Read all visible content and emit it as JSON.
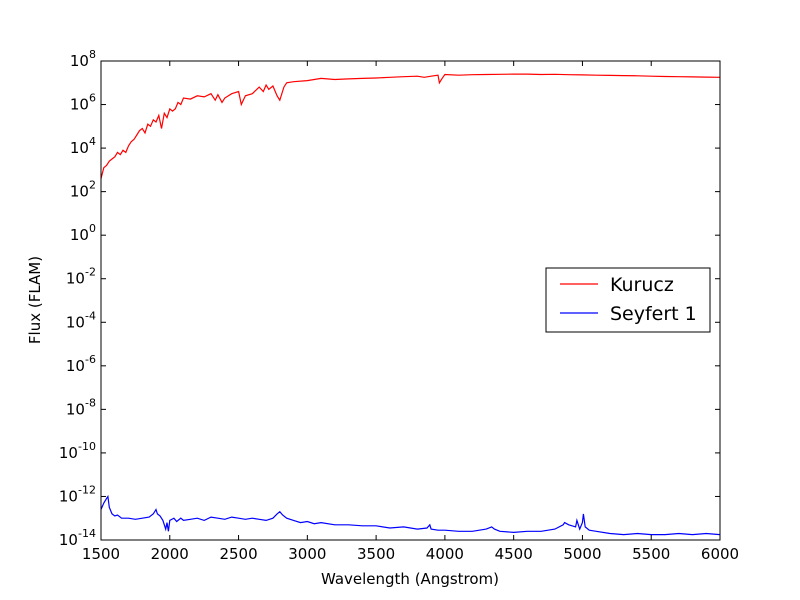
{
  "chart_data": {
    "type": "line",
    "title": "",
    "xlabel": "Wavelength (Angstrom)",
    "ylabel": "Flux (FLAM)",
    "xlim": [
      1500,
      6000
    ],
    "ylim_log10": [
      -14,
      8
    ],
    "y_scale": "log",
    "grid": false,
    "legend_placement": "center-right",
    "x_ticks": [
      1500,
      2000,
      2500,
      3000,
      3500,
      4000,
      4500,
      5000,
      5500,
      6000
    ],
    "x_tick_labels": [
      "1500",
      "2000",
      "2500",
      "3000",
      "3500",
      "4000",
      "4500",
      "5000",
      "5500",
      "6000"
    ],
    "y_tick_exponents": [
      8,
      6,
      4,
      2,
      0,
      -2,
      -4,
      -6,
      -8,
      -10,
      -12,
      -14
    ],
    "y_tick_labels": [
      "8",
      "6",
      "4",
      "2",
      "0",
      "-2",
      "-4",
      "-6",
      "-8",
      "-10",
      "-12",
      "-14"
    ],
    "y_tick_base": "10",
    "series": [
      {
        "name": "Kurucz",
        "color": "#ff0000",
        "x": [
          1500,
          1520,
          1540,
          1560,
          1580,
          1600,
          1620,
          1640,
          1660,
          1680,
          1700,
          1720,
          1740,
          1760,
          1780,
          1800,
          1820,
          1840,
          1860,
          1880,
          1900,
          1920,
          1940,
          1960,
          1980,
          2000,
          2020,
          2040,
          2060,
          2080,
          2100,
          2150,
          2200,
          2250,
          2300,
          2330,
          2350,
          2380,
          2400,
          2450,
          2500,
          2520,
          2550,
          2600,
          2650,
          2680,
          2700,
          2720,
          2750,
          2780,
          2800,
          2830,
          2850,
          2900,
          3000,
          3100,
          3200,
          3300,
          3400,
          3500,
          3600,
          3700,
          3800,
          3850,
          3900,
          3950,
          3960,
          3980,
          4000,
          4100,
          4200,
          4300,
          4400,
          4500,
          4600,
          4700,
          4800,
          4900,
          5000,
          5100,
          5200,
          5300,
          5400,
          5500,
          5600,
          5700,
          5800,
          5900,
          6000
        ],
        "log10_y": [
          2.6,
          3.1,
          3.2,
          3.4,
          3.5,
          3.6,
          3.8,
          3.7,
          3.9,
          3.8,
          4.1,
          4.3,
          4.4,
          4.6,
          4.8,
          4.9,
          4.7,
          5.1,
          5.0,
          5.3,
          5.2,
          5.5,
          4.9,
          5.6,
          5.4,
          5.8,
          5.7,
          5.8,
          6.1,
          6.0,
          6.3,
          6.25,
          6.4,
          6.35,
          6.5,
          6.2,
          6.45,
          6.1,
          6.3,
          6.5,
          6.6,
          6.0,
          6.4,
          6.5,
          6.8,
          6.6,
          6.9,
          6.7,
          6.85,
          6.4,
          6.2,
          6.8,
          7.0,
          7.05,
          7.1,
          7.2,
          7.15,
          7.18,
          7.2,
          7.22,
          7.25,
          7.28,
          7.3,
          7.25,
          7.3,
          7.35,
          7.0,
          7.2,
          7.38,
          7.35,
          7.37,
          7.38,
          7.39,
          7.4,
          7.4,
          7.38,
          7.39,
          7.37,
          7.36,
          7.35,
          7.34,
          7.33,
          7.32,
          7.3,
          7.29,
          7.28,
          7.27,
          7.26,
          7.25
        ]
      },
      {
        "name": "Seyfert 1",
        "color": "#0000ff",
        "x": [
          1500,
          1520,
          1540,
          1550,
          1560,
          1580,
          1600,
          1620,
          1650,
          1700,
          1750,
          1800,
          1850,
          1880,
          1900,
          1910,
          1930,
          1950,
          1960,
          1970,
          1980,
          1990,
          2000,
          2030,
          2050,
          2080,
          2100,
          2150,
          2200,
          2250,
          2300,
          2350,
          2400,
          2450,
          2500,
          2550,
          2600,
          2650,
          2700,
          2750,
          2780,
          2800,
          2820,
          2850,
          2900,
          2950,
          3000,
          3050,
          3100,
          3200,
          3300,
          3400,
          3500,
          3600,
          3700,
          3800,
          3870,
          3890,
          3900,
          3950,
          4000,
          4100,
          4200,
          4300,
          4340,
          4360,
          4400,
          4500,
          4600,
          4700,
          4800,
          4860,
          4870,
          4900,
          4950,
          4960,
          4980,
          5000,
          5007,
          5020,
          5050,
          5100,
          5200,
          5300,
          5400,
          5500,
          5600,
          5700,
          5800,
          5900,
          6000
        ],
        "log10_y": [
          -12.6,
          -12.3,
          -12.1,
          -12.0,
          -12.5,
          -12.8,
          -12.9,
          -12.85,
          -13.0,
          -13.0,
          -13.05,
          -13.0,
          -12.95,
          -12.8,
          -12.6,
          -12.8,
          -12.9,
          -13.1,
          -13.3,
          -13.5,
          -13.2,
          -13.6,
          -13.1,
          -13.0,
          -13.15,
          -13.0,
          -13.1,
          -13.05,
          -13.0,
          -13.1,
          -12.95,
          -13.0,
          -13.05,
          -12.95,
          -13.0,
          -13.05,
          -13.0,
          -13.05,
          -13.1,
          -13.0,
          -12.8,
          -12.7,
          -12.85,
          -13.0,
          -13.1,
          -13.2,
          -13.15,
          -13.25,
          -13.2,
          -13.3,
          -13.3,
          -13.35,
          -13.35,
          -13.45,
          -13.4,
          -13.5,
          -13.45,
          -13.3,
          -13.5,
          -13.55,
          -13.55,
          -13.6,
          -13.6,
          -13.5,
          -13.4,
          -13.5,
          -13.6,
          -13.65,
          -13.6,
          -13.6,
          -13.5,
          -13.3,
          -13.2,
          -13.3,
          -13.4,
          -13.1,
          -13.5,
          -13.2,
          -12.8,
          -13.4,
          -13.55,
          -13.6,
          -13.7,
          -13.75,
          -13.7,
          -13.75,
          -13.75,
          -13.7,
          -13.75,
          -13.7,
          -13.75
        ]
      }
    ]
  }
}
